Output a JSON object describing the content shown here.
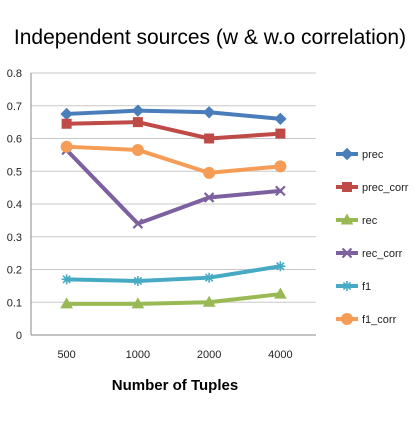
{
  "chart_data": {
    "type": "line",
    "title": "Independent sources (w & w.o correlation)",
    "xlabel": "Number of Tuples",
    "ylabel": "",
    "categories": [
      "500",
      "1000",
      "2000",
      "4000"
    ],
    "ylim": [
      0,
      0.8
    ],
    "yticks": [
      "0",
      "0.1",
      "0.2",
      "0.3",
      "0.4",
      "0.5",
      "0.6",
      "0.7",
      "0.8"
    ],
    "grid": "horizontal",
    "legend_position": "right",
    "series": [
      {
        "name": "prec",
        "values": [
          0.675,
          0.685,
          0.68,
          0.66
        ],
        "color": "#4a7ebb",
        "marker": "diamond"
      },
      {
        "name": "prec_corr",
        "values": [
          0.645,
          0.65,
          0.6,
          0.615
        ],
        "color": "#be4b48",
        "marker": "square"
      },
      {
        "name": "rec",
        "values": [
          0.095,
          0.095,
          0.1,
          0.125
        ],
        "color": "#98b954",
        "marker": "triangle"
      },
      {
        "name": "rec_corr",
        "values": [
          0.565,
          0.34,
          0.42,
          0.44
        ],
        "color": "#7d60a0",
        "marker": "x"
      },
      {
        "name": "f1",
        "values": [
          0.17,
          0.165,
          0.175,
          0.21
        ],
        "color": "#46aac5",
        "marker": "star"
      },
      {
        "name": "f1_corr",
        "values": [
          0.575,
          0.565,
          0.495,
          0.515
        ],
        "color": "#f59d56",
        "marker": "circle"
      }
    ]
  }
}
